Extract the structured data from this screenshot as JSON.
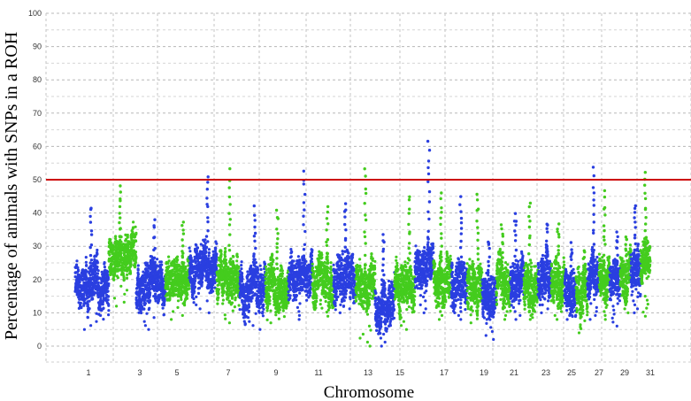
{
  "chart_data": {
    "type": "scatter",
    "title": "",
    "xlabel": "Chromosome",
    "ylabel": "Percentage of animals with SNPs in a ROH",
    "ylim": [
      0,
      100
    ],
    "yticks": [
      0,
      10,
      20,
      30,
      40,
      50,
      60,
      70,
      80,
      90,
      100
    ],
    "grid": true,
    "xtick_labels": [
      "1",
      "3",
      "5",
      "7",
      "9",
      "11",
      "13",
      "15",
      "17",
      "19",
      "21",
      "23",
      "25",
      "27",
      "29",
      "31"
    ],
    "threshold": {
      "value": 50,
      "color": "#cc0000"
    },
    "colors": {
      "odd": "#2a3fe0",
      "even": "#44cc1e"
    },
    "chromosomes": [
      {
        "chr": 1,
        "min": 5,
        "mean": 18,
        "max": 43
      },
      {
        "chr": 2,
        "min": 12,
        "mean": 28,
        "max": 49
      },
      {
        "chr": 3,
        "min": 5,
        "mean": 17,
        "max": 39
      },
      {
        "chr": 4,
        "min": 8,
        "mean": 19,
        "max": 38
      },
      {
        "chr": 5,
        "min": 10,
        "mean": 24,
        "max": 52
      },
      {
        "chr": 6,
        "min": 7,
        "mean": 20,
        "max": 54
      },
      {
        "chr": 7,
        "min": 5,
        "mean": 18,
        "max": 43
      },
      {
        "chr": 8,
        "min": 7,
        "mean": 19,
        "max": 42
      },
      {
        "chr": 9,
        "min": 8,
        "mean": 20,
        "max": 54
      },
      {
        "chr": 10,
        "min": 9,
        "mean": 19,
        "max": 42
      },
      {
        "chr": 11,
        "min": 10,
        "mean": 21,
        "max": 44
      },
      {
        "chr": 12,
        "min": 0,
        "mean": 18,
        "max": 54
      },
      {
        "chr": 13,
        "min": 0,
        "mean": 13,
        "max": 35
      },
      {
        "chr": 14,
        "min": 5,
        "mean": 18,
        "max": 46
      },
      {
        "chr": 15,
        "min": 10,
        "mean": 25,
        "max": 63
      },
      {
        "chr": 16,
        "min": 8,
        "mean": 20,
        "max": 47
      },
      {
        "chr": 17,
        "min": 8,
        "mean": 18,
        "max": 46
      },
      {
        "chr": 18,
        "min": 7,
        "mean": 19,
        "max": 47
      },
      {
        "chr": 19,
        "min": 2,
        "mean": 16,
        "max": 33
      },
      {
        "chr": 20,
        "min": 8,
        "mean": 19,
        "max": 38
      },
      {
        "chr": 21,
        "min": 8,
        "mean": 20,
        "max": 41
      },
      {
        "chr": 22,
        "min": 8,
        "mean": 18,
        "max": 44
      },
      {
        "chr": 23,
        "min": 10,
        "mean": 21,
        "max": 38
      },
      {
        "chr": 24,
        "min": 8,
        "mean": 20,
        "max": 38
      },
      {
        "chr": 25,
        "min": 8,
        "mean": 17,
        "max": 32
      },
      {
        "chr": 26,
        "min": 4,
        "mean": 16,
        "max": 30
      },
      {
        "chr": 27,
        "min": 8,
        "mean": 23,
        "max": 54
      },
      {
        "chr": 28,
        "min": 8,
        "mean": 22,
        "max": 47
      },
      {
        "chr": 29,
        "min": 6,
        "mean": 19,
        "max": 36
      },
      {
        "chr": 30,
        "min": 10,
        "mean": 21,
        "max": 34
      },
      {
        "chr": 31,
        "min": 10,
        "mean": 23,
        "max": 44
      },
      {
        "chr": 32,
        "min": 9,
        "mean": 26,
        "max": 53
      }
    ]
  }
}
